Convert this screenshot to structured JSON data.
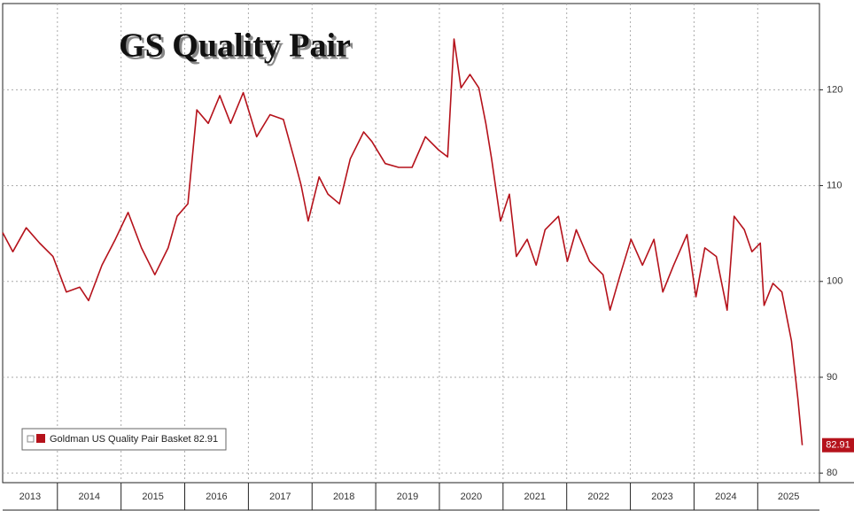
{
  "chart_data": {
    "type": "line",
    "title": "GS Quality Pair",
    "x": [
      2013.14,
      2013.3,
      2013.51,
      2013.72,
      2013.93,
      2014.14,
      2014.35,
      2014.49,
      2014.7,
      2014.91,
      2015.11,
      2015.32,
      2015.53,
      2015.74,
      2015.88,
      2016.05,
      2016.19,
      2016.37,
      2016.55,
      2016.72,
      2016.92,
      2017.13,
      2017.34,
      2017.55,
      2017.72,
      2017.83,
      2017.94,
      2018.11,
      2018.25,
      2018.43,
      2018.6,
      2018.81,
      2018.94,
      2019.15,
      2019.36,
      2019.57,
      2019.78,
      2019.99,
      2020.13,
      2020.23,
      2020.34,
      2020.48,
      2020.62,
      2020.73,
      2020.82,
      2020.96,
      2021.1,
      2021.21,
      2021.38,
      2021.52,
      2021.66,
      2021.87,
      2022.01,
      2022.15,
      2022.36,
      2022.57,
      2022.68,
      2022.84,
      2023.01,
      2023.19,
      2023.37,
      2023.51,
      2023.68,
      2023.89,
      2024.03,
      2024.17,
      2024.35,
      2024.52,
      2024.63,
      2024.79,
      2024.91,
      2025.04,
      2025.1,
      2025.24,
      2025.38,
      2025.53,
      2025.63,
      2025.7
    ],
    "series": [
      {
        "name": "Goldman US Quality Pair Basket",
        "color": "#b5121b",
        "values": [
          105.1,
          103.1,
          105.6,
          104.0,
          102.6,
          98.9,
          99.4,
          98.0,
          101.7,
          104.4,
          107.2,
          103.5,
          100.7,
          103.5,
          106.8,
          108.1,
          117.9,
          116.5,
          119.4,
          116.5,
          119.7,
          115.1,
          117.4,
          116.9,
          112.8,
          110.0,
          106.3,
          110.9,
          109.1,
          108.1,
          112.8,
          115.6,
          114.6,
          112.3,
          111.9,
          111.9,
          115.1,
          113.7,
          113.0,
          125.3,
          120.2,
          121.6,
          120.2,
          116.5,
          112.8,
          106.3,
          109.1,
          102.6,
          104.4,
          101.7,
          105.4,
          106.8,
          102.1,
          105.4,
          102.1,
          100.7,
          97.0,
          100.7,
          104.4,
          101.7,
          104.4,
          98.9,
          101.7,
          104.9,
          98.4,
          103.5,
          102.6,
          97.0,
          106.8,
          105.4,
          103.1,
          104.0,
          97.5,
          99.8,
          98.9,
          93.8,
          87.8,
          82.91
        ]
      }
    ],
    "xlim": [
      2013.14,
      2025.97
    ],
    "xticks": [
      2013,
      2014,
      2015,
      2016,
      2017,
      2018,
      2019,
      2020,
      2021,
      2022,
      2023,
      2024,
      2025
    ],
    "ylim": [
      79,
      129
    ],
    "yticks": [
      80,
      90,
      100,
      110,
      120
    ],
    "grid": true
  }
}
